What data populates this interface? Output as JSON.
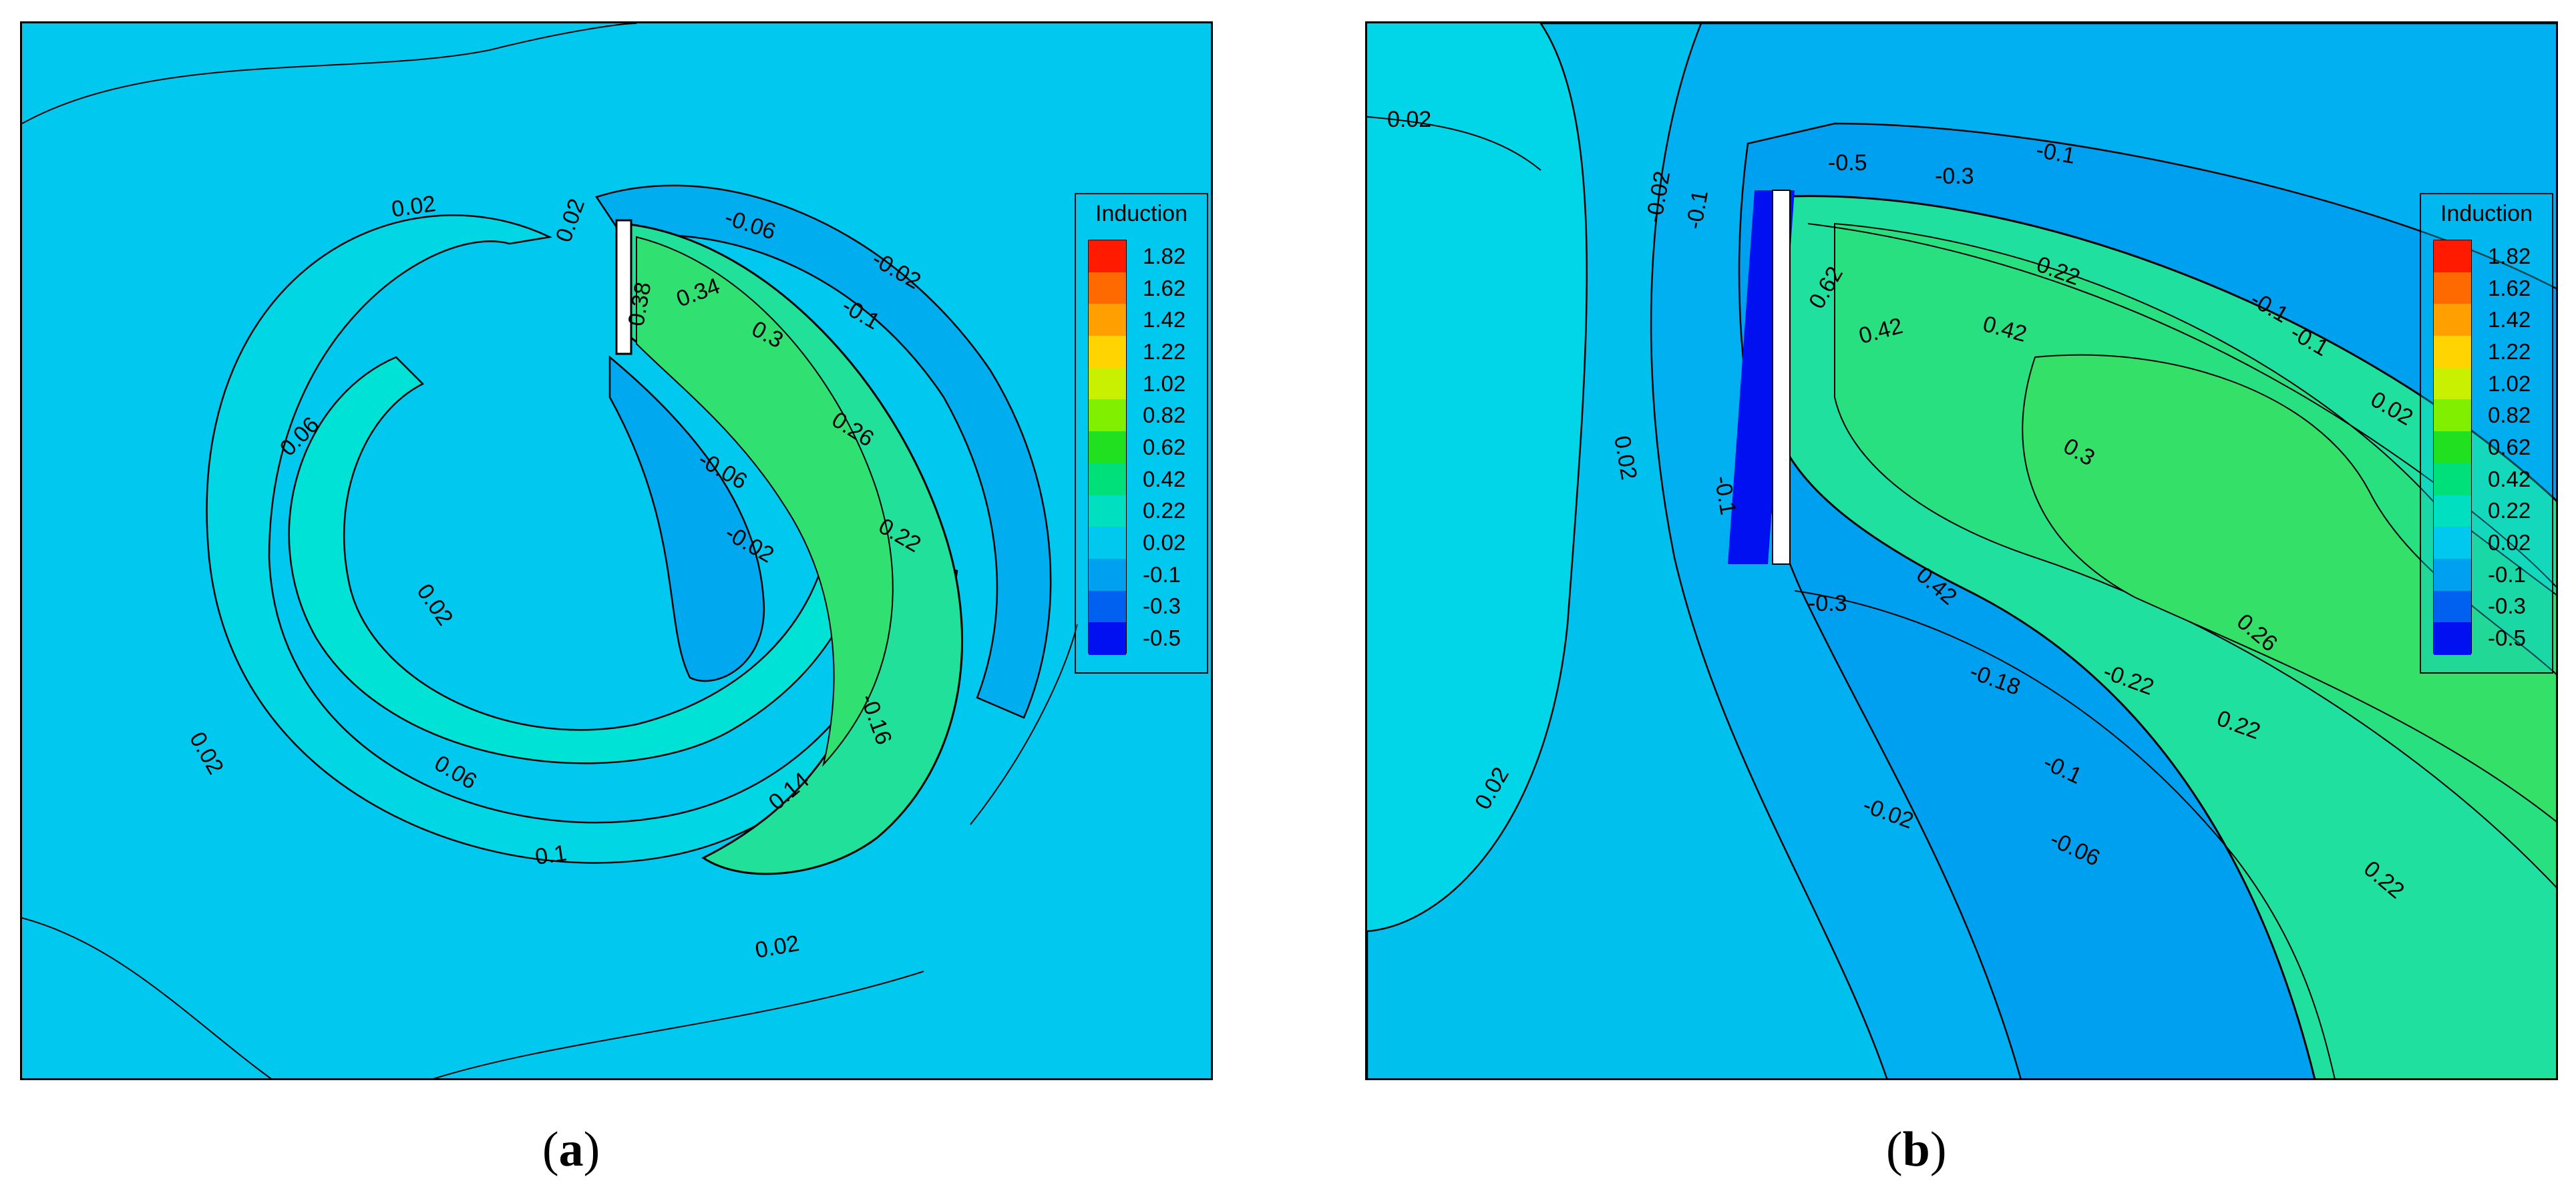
{
  "chart_data": [
    {
      "type": "heatmap",
      "panel_label": "a",
      "legend": {
        "title": "Induction",
        "ticks": [
          "1.82",
          "1.62",
          "1.42",
          "1.22",
          "1.02",
          "0.82",
          "0.62",
          "0.42",
          "0.22",
          "0.02",
          "-0.1",
          "-0.3",
          "-0.5"
        ],
        "colors": [
          "#ff1a00",
          "#ff6a00",
          "#ffa000",
          "#ffd400",
          "#c8f000",
          "#80f000",
          "#20e020",
          "#00e07a",
          "#00e0c0",
          "#00c8ee",
          "#00a0f0",
          "#0060f0",
          "#0010f0"
        ]
      },
      "contour_labels": [
        "0.02",
        "0.02",
        "-0.06",
        "-0.02",
        "-0.1",
        "0.38",
        "0.34",
        "0.3",
        "0.26",
        "0.06",
        "-0.06",
        "-0.02",
        "0.22",
        "0.02",
        "0.02",
        "-0.16",
        "0.06",
        "0.14",
        "0.1",
        "0.02"
      ]
    },
    {
      "type": "heatmap",
      "panel_label": "b",
      "legend": {
        "title": "Induction",
        "ticks": [
          "1.82",
          "1.62",
          "1.42",
          "1.22",
          "1.02",
          "0.82",
          "0.62",
          "0.42",
          "0.22",
          "0.02",
          "-0.1",
          "-0.3",
          "-0.5"
        ],
        "colors": [
          "#ff1a00",
          "#ff6a00",
          "#ffa000",
          "#ffd400",
          "#c8f000",
          "#80f000",
          "#20e020",
          "#00e07a",
          "#00e0c0",
          "#00c8ee",
          "#00a0f0",
          "#0060f0",
          "#0010f0"
        ]
      },
      "contour_labels": [
        "0.02",
        "-0.02",
        "-0.1",
        "-0.5",
        "-0.3",
        "-0.1",
        "0.62",
        "0.22",
        "0.42",
        "0.42",
        "-0.1",
        "-0.1",
        "0.02",
        "0.02",
        "0.3",
        "-0.1",
        "0.42",
        "-0.3",
        "0.26",
        "-0.18",
        "-0.22",
        "0.22",
        "-0.1",
        "0.02",
        "-0.02",
        "-0.06",
        "0.22"
      ]
    }
  ]
}
